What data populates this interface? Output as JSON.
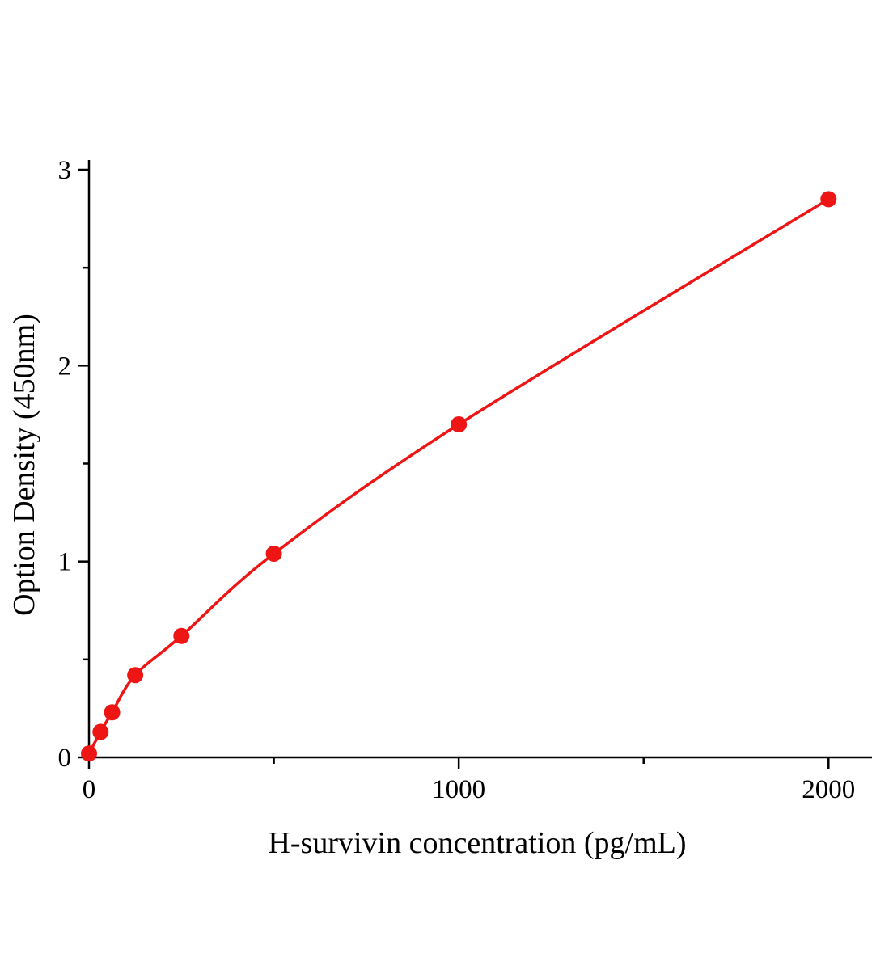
{
  "chart_data": {
    "type": "line",
    "title": "",
    "xlabel": "H-survivin concentration (pg/mL)",
    "ylabel": "Option Density (450nm)",
    "x": [
      0,
      31.25,
      62.5,
      125,
      250,
      500,
      1000,
      2000
    ],
    "y": [
      0.02,
      0.13,
      0.23,
      0.42,
      0.62,
      1.04,
      1.7,
      2.85
    ],
    "xlim": [
      0,
      2100
    ],
    "ylim": [
      0,
      3
    ],
    "x_major_ticks": [
      0,
      1000,
      2000
    ],
    "x_minor_ticks": [
      500,
      1500
    ],
    "y_major_ticks": [
      0,
      1,
      2,
      3
    ],
    "y_minor_ticks": [
      0.5,
      1.5,
      2.5
    ],
    "legend_position": "none",
    "grid": false,
    "marker": "circle",
    "line_color": "#ee1515",
    "marker_color": "#ee1515",
    "axis_color": "#000000",
    "background_color": "#ffffff"
  }
}
